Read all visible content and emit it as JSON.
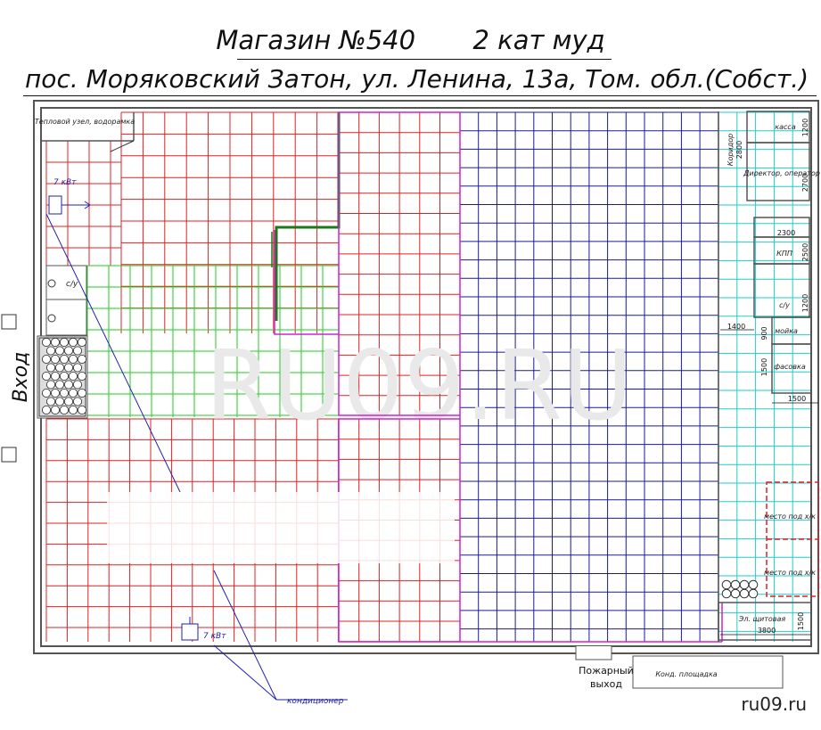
{
  "header": {
    "title": "Магазин №540",
    "category": "2 кат муд",
    "address": "пос. Моряковский Затон, ул. Ленина, 13а, Том. обл.(Собст.)"
  },
  "plan": {
    "entrance": "Вход",
    "rooms": {
      "heat_unit": "Тепловой узел, водорамка",
      "wc_left": "с/у",
      "cashier": "касса",
      "corridor": "Коридор",
      "director": "Директор, оператор",
      "kpp": "КПП",
      "wc_right": "с/у",
      "sink": "мойка",
      "packing": "фасовка",
      "cold_place_1": "место под х/к",
      "cold_place_2": "место под х/к",
      "switchboard": "Эл. щитовая",
      "ac_platform": "Конд. площадка"
    },
    "power": {
      "top": "7 кВт",
      "bottom": "7 кВт"
    },
    "fire_exit": {
      "line1": "Пожарный",
      "line2": "выход"
    },
    "ac_label": "кондиционер",
    "dims": {
      "d1200a": "1200",
      "d2800": "2800",
      "d2700": "2700",
      "d2300": "2300",
      "d2500": "2500",
      "d1200b": "1200",
      "d1400": "1400",
      "d900": "900",
      "d1500a": "1500",
      "d1500b": "1500",
      "d1500c": "1500",
      "d3800": "3800"
    },
    "watermark": "RU09.RU"
  },
  "credit": "ru09.ru",
  "colors": {
    "red_grid": "#e02020",
    "blue_grid": "#1a1a9a",
    "green_grid": "#22cc22",
    "cyan_grid": "#22cccc",
    "magenta": "#d020d0",
    "wall": "#555555"
  }
}
